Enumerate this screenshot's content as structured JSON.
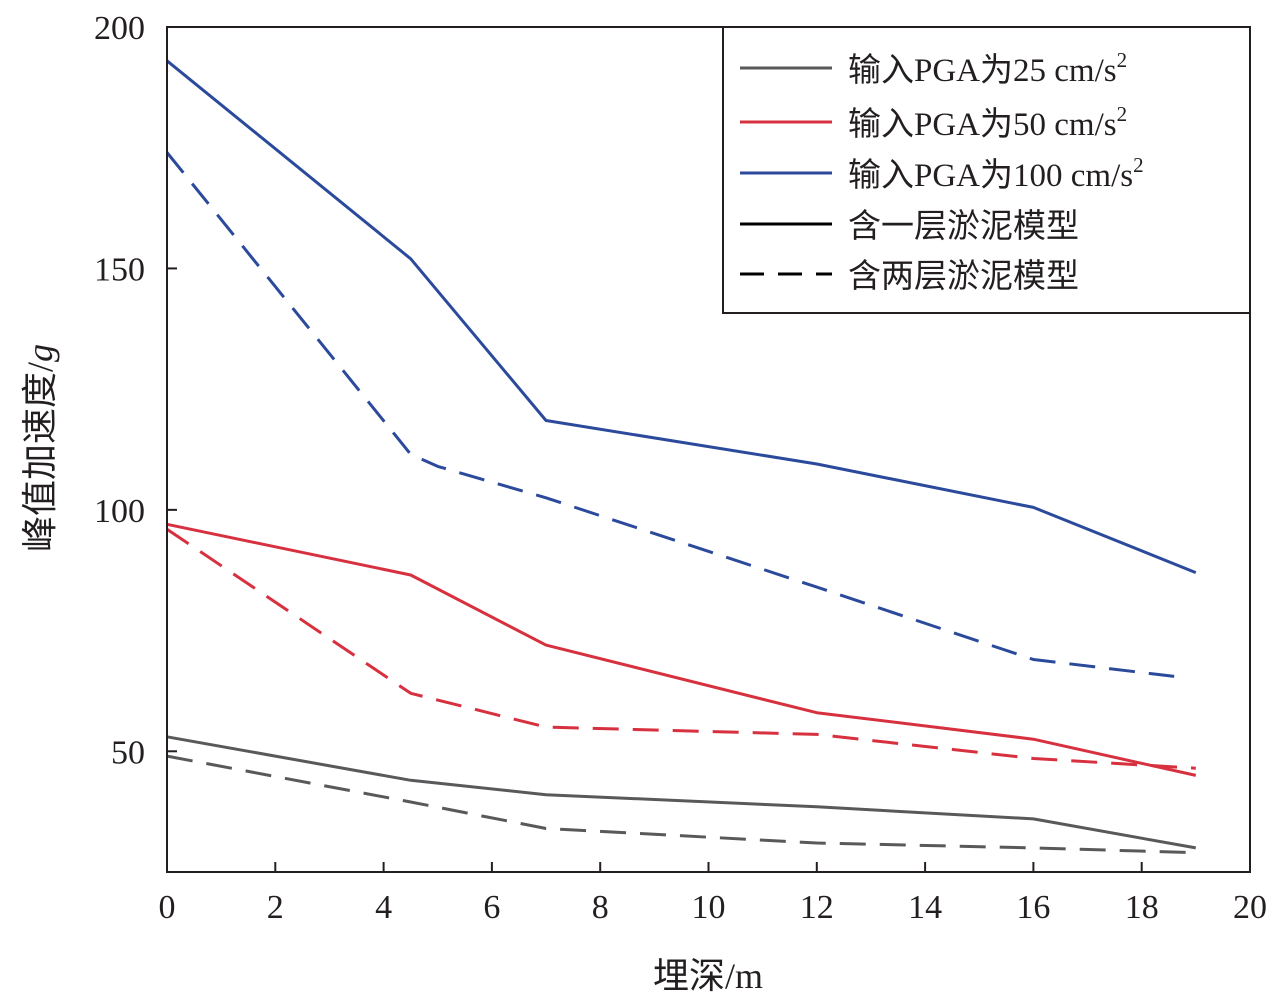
{
  "chart_data": {
    "type": "line",
    "xlabel": "埋深/m",
    "ylabel_text": "峰值加速度/",
    "ylabel_unit": "g",
    "xlim": [
      0,
      20
    ],
    "ylim": [
      25,
      200
    ],
    "xticks": [
      0,
      2,
      4,
      6,
      8,
      10,
      12,
      14,
      16,
      18,
      20
    ],
    "yticks": [
      50,
      100,
      150,
      200
    ],
    "grid": false,
    "legend_position": "top-right",
    "legend": [
      {
        "label": "输入PGA为25 cm/s",
        "sup": "2",
        "color": "#58595b",
        "dash": "solid"
      },
      {
        "label": "输入PGA为50 cm/s",
        "sup": "2",
        "color": "#d7303f",
        "dash": "solid"
      },
      {
        "label": "输入PGA为100 cm/s",
        "sup": "2",
        "color": "#2b4a9c",
        "dash": "solid"
      },
      {
        "label": "含一层淤泥模型",
        "sup": "",
        "color": "#000000",
        "dash": "solid"
      },
      {
        "label": "含两层淤泥模型",
        "sup": "",
        "color": "#000000",
        "dash": "dashed"
      }
    ],
    "series": [
      {
        "name": "输入PGA为25 cm/s2 含一层淤泥模型",
        "color": "#58595b",
        "dash": "solid",
        "points": [
          [
            0,
            53
          ],
          [
            4.5,
            44
          ],
          [
            7,
            41
          ],
          [
            12,
            38.5
          ],
          [
            16,
            36
          ],
          [
            19,
            30
          ]
        ]
      },
      {
        "name": "输入PGA为25 cm/s2 含两层淤泥模型",
        "color": "#58595b",
        "dash": "dashed",
        "points": [
          [
            0,
            49
          ],
          [
            4.5,
            39.5
          ],
          [
            7,
            34
          ],
          [
            12,
            31
          ],
          [
            16,
            30
          ],
          [
            19,
            29
          ]
        ]
      },
      {
        "name": "输入PGA为50 cm/s2 含一层淤泥模型",
        "color": "#d7303f",
        "dash": "solid",
        "points": [
          [
            0,
            97
          ],
          [
            4.5,
            86.5
          ],
          [
            7,
            72
          ],
          [
            12,
            58
          ],
          [
            16,
            52.5
          ],
          [
            19,
            45
          ]
        ]
      },
      {
        "name": "输入PGA为50 cm/s2 含两层淤泥模型",
        "color": "#d7303f",
        "dash": "dashed",
        "points": [
          [
            0,
            96
          ],
          [
            4.5,
            62
          ],
          [
            7,
            55
          ],
          [
            12,
            53.5
          ],
          [
            16,
            48.5
          ],
          [
            19,
            46.5
          ]
        ]
      },
      {
        "name": "输入PGA为100 cm/s2 含一层淤泥模型",
        "color": "#2b4a9c",
        "dash": "solid",
        "points": [
          [
            0,
            193
          ],
          [
            4.5,
            152
          ],
          [
            7,
            118.5
          ],
          [
            12,
            109.5
          ],
          [
            16,
            100.5
          ],
          [
            19,
            87
          ]
        ]
      },
      {
        "name": "输入PGA为100 cm/s2 含两层淤泥模型",
        "color": "#2b4a9c",
        "dash": "dashed",
        "points": [
          [
            0,
            174
          ],
          [
            4.5,
            111.5
          ],
          [
            5,
            109
          ],
          [
            7,
            102.5
          ],
          [
            12,
            84
          ],
          [
            16,
            69
          ],
          [
            18.6,
            65.5
          ]
        ]
      }
    ]
  }
}
